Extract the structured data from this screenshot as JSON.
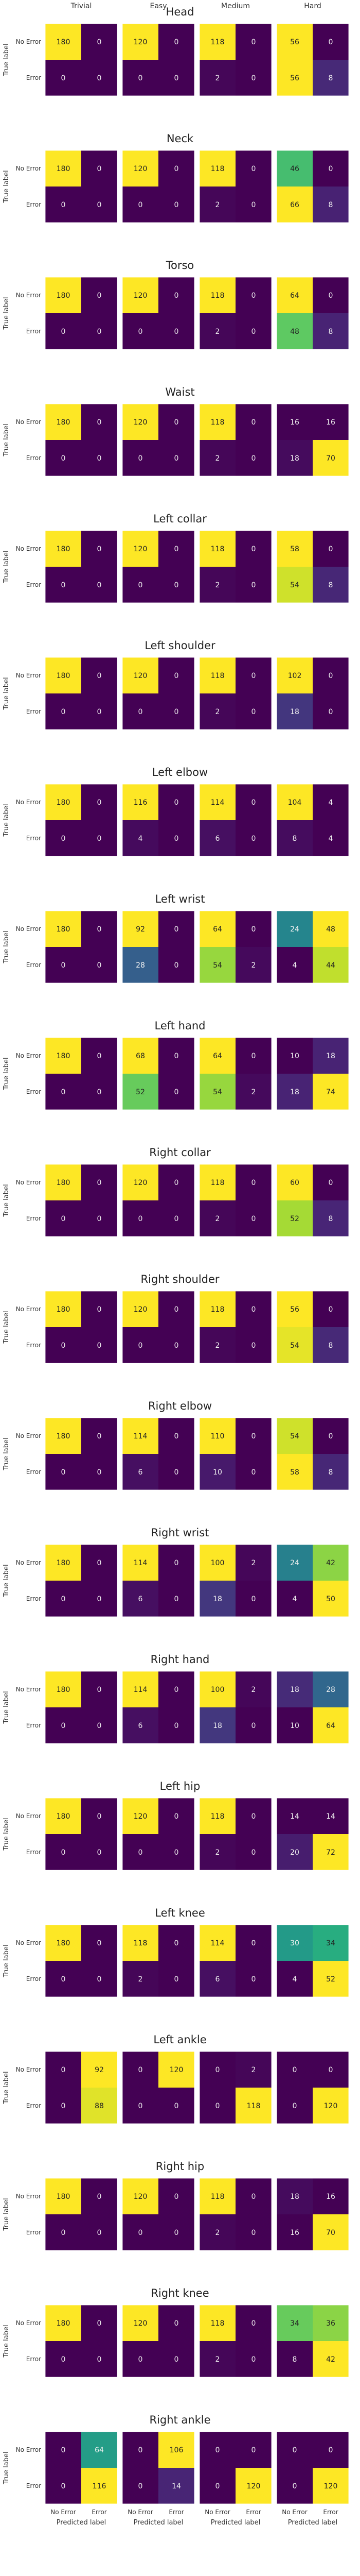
{
  "chart_data": {
    "type": "heatmap",
    "difficulties": [
      "Trivial",
      "Easy",
      "Medium",
      "Hard"
    ],
    "axis": {
      "ylabel": "True label",
      "xlabel": "Predicted label",
      "ticks": [
        "No Error",
        "Error"
      ]
    },
    "colormap": {
      "low": "#440154",
      "high": "#fde725",
      "mid": "#21918c"
    },
    "rows": [
      {
        "title": "Head",
        "matrices": [
          [
            [
              180,
              0
            ],
            [
              0,
              0
            ]
          ],
          [
            [
              120,
              0
            ],
            [
              0,
              0
            ]
          ],
          [
            [
              118,
              0
            ],
            [
              2,
              0
            ]
          ],
          [
            [
              56,
              0
            ],
            [
              56,
              8
            ]
          ]
        ]
      },
      {
        "title": "Neck",
        "matrices": [
          [
            [
              180,
              0
            ],
            [
              0,
              0
            ]
          ],
          [
            [
              120,
              0
            ],
            [
              0,
              0
            ]
          ],
          [
            [
              118,
              0
            ],
            [
              2,
              0
            ]
          ],
          [
            [
              46,
              0
            ],
            [
              66,
              8
            ]
          ]
        ]
      },
      {
        "title": "Torso",
        "matrices": [
          [
            [
              180,
              0
            ],
            [
              0,
              0
            ]
          ],
          [
            [
              120,
              0
            ],
            [
              0,
              0
            ]
          ],
          [
            [
              118,
              0
            ],
            [
              2,
              0
            ]
          ],
          [
            [
              64,
              0
            ],
            [
              48,
              8
            ]
          ]
        ]
      },
      {
        "title": "Waist",
        "matrices": [
          [
            [
              180,
              0
            ],
            [
              0,
              0
            ]
          ],
          [
            [
              120,
              0
            ],
            [
              0,
              0
            ]
          ],
          [
            [
              118,
              0
            ],
            [
              2,
              0
            ]
          ],
          [
            [
              16,
              16
            ],
            [
              18,
              70
            ]
          ]
        ]
      },
      {
        "title": "Left collar",
        "matrices": [
          [
            [
              180,
              0
            ],
            [
              0,
              0
            ]
          ],
          [
            [
              120,
              0
            ],
            [
              0,
              0
            ]
          ],
          [
            [
              118,
              0
            ],
            [
              2,
              0
            ]
          ],
          [
            [
              58,
              0
            ],
            [
              54,
              8
            ]
          ]
        ]
      },
      {
        "title": "Left shoulder",
        "matrices": [
          [
            [
              180,
              0
            ],
            [
              0,
              0
            ]
          ],
          [
            [
              120,
              0
            ],
            [
              0,
              0
            ]
          ],
          [
            [
              118,
              0
            ],
            [
              2,
              0
            ]
          ],
          [
            [
              102,
              0
            ],
            [
              18,
              0
            ]
          ]
        ]
      },
      {
        "title": "Left elbow",
        "matrices": [
          [
            [
              180,
              0
            ],
            [
              0,
              0
            ]
          ],
          [
            [
              116,
              0
            ],
            [
              4,
              0
            ]
          ],
          [
            [
              114,
              0
            ],
            [
              6,
              0
            ]
          ],
          [
            [
              104,
              4
            ],
            [
              8,
              4
            ]
          ]
        ]
      },
      {
        "title": "Left wrist",
        "matrices": [
          [
            [
              180,
              0
            ],
            [
              0,
              0
            ]
          ],
          [
            [
              92,
              0
            ],
            [
              28,
              0
            ]
          ],
          [
            [
              64,
              0
            ],
            [
              54,
              2
            ]
          ],
          [
            [
              24,
              48
            ],
            [
              4,
              44
            ]
          ]
        ]
      },
      {
        "title": "Left hand",
        "matrices": [
          [
            [
              180,
              0
            ],
            [
              0,
              0
            ]
          ],
          [
            [
              68,
              0
            ],
            [
              52,
              0
            ]
          ],
          [
            [
              64,
              0
            ],
            [
              54,
              2
            ]
          ],
          [
            [
              10,
              18
            ],
            [
              18,
              74
            ]
          ]
        ]
      },
      {
        "title": "Right collar",
        "matrices": [
          [
            [
              180,
              0
            ],
            [
              0,
              0
            ]
          ],
          [
            [
              120,
              0
            ],
            [
              0,
              0
            ]
          ],
          [
            [
              118,
              0
            ],
            [
              2,
              0
            ]
          ],
          [
            [
              60,
              0
            ],
            [
              52,
              8
            ]
          ]
        ]
      },
      {
        "title": "Right shoulder",
        "matrices": [
          [
            [
              180,
              0
            ],
            [
              0,
              0
            ]
          ],
          [
            [
              120,
              0
            ],
            [
              0,
              0
            ]
          ],
          [
            [
              118,
              0
            ],
            [
              2,
              0
            ]
          ],
          [
            [
              56,
              0
            ],
            [
              54,
              8
            ]
          ]
        ]
      },
      {
        "title": "Right elbow",
        "matrices": [
          [
            [
              180,
              0
            ],
            [
              0,
              0
            ]
          ],
          [
            [
              114,
              0
            ],
            [
              6,
              0
            ]
          ],
          [
            [
              110,
              0
            ],
            [
              10,
              0
            ]
          ],
          [
            [
              54,
              0
            ],
            [
              58,
              8
            ]
          ]
        ]
      },
      {
        "title": "Right wrist",
        "matrices": [
          [
            [
              180,
              0
            ],
            [
              0,
              0
            ]
          ],
          [
            [
              114,
              0
            ],
            [
              6,
              0
            ]
          ],
          [
            [
              100,
              2
            ],
            [
              18,
              0
            ]
          ],
          [
            [
              24,
              42
            ],
            [
              4,
              50
            ]
          ]
        ]
      },
      {
        "title": "Right hand",
        "matrices": [
          [
            [
              180,
              0
            ],
            [
              0,
              0
            ]
          ],
          [
            [
              114,
              0
            ],
            [
              6,
              0
            ]
          ],
          [
            [
              100,
              2
            ],
            [
              18,
              0
            ]
          ],
          [
            [
              18,
              28
            ],
            [
              10,
              64
            ]
          ]
        ]
      },
      {
        "title": "Left hip",
        "matrices": [
          [
            [
              180,
              0
            ],
            [
              0,
              0
            ]
          ],
          [
            [
              120,
              0
            ],
            [
              0,
              0
            ]
          ],
          [
            [
              118,
              0
            ],
            [
              2,
              0
            ]
          ],
          [
            [
              14,
              14
            ],
            [
              20,
              72
            ]
          ]
        ]
      },
      {
        "title": "Left knee",
        "matrices": [
          [
            [
              180,
              0
            ],
            [
              0,
              0
            ]
          ],
          [
            [
              118,
              0
            ],
            [
              2,
              0
            ]
          ],
          [
            [
              114,
              0
            ],
            [
              6,
              0
            ]
          ],
          [
            [
              30,
              34
            ],
            [
              4,
              52
            ]
          ]
        ]
      },
      {
        "title": "Left ankle",
        "matrices": [
          [
            [
              0,
              92
            ],
            [
              0,
              88
            ]
          ],
          [
            [
              0,
              120
            ],
            [
              0,
              0
            ]
          ],
          [
            [
              0,
              2
            ],
            [
              0,
              118
            ]
          ],
          [
            [
              0,
              0
            ],
            [
              0,
              120
            ]
          ]
        ]
      },
      {
        "title": "Right hip",
        "matrices": [
          [
            [
              180,
              0
            ],
            [
              0,
              0
            ]
          ],
          [
            [
              120,
              0
            ],
            [
              0,
              0
            ]
          ],
          [
            [
              118,
              0
            ],
            [
              2,
              0
            ]
          ],
          [
            [
              18,
              16
            ],
            [
              16,
              70
            ]
          ]
        ]
      },
      {
        "title": "Right knee",
        "matrices": [
          [
            [
              180,
              0
            ],
            [
              0,
              0
            ]
          ],
          [
            [
              120,
              0
            ],
            [
              0,
              0
            ]
          ],
          [
            [
              118,
              0
            ],
            [
              2,
              0
            ]
          ],
          [
            [
              34,
              36
            ],
            [
              8,
              42
            ]
          ]
        ]
      },
      {
        "title": "Right ankle",
        "matrices": [
          [
            [
              0,
              64
            ],
            [
              0,
              116
            ]
          ],
          [
            [
              0,
              106
            ],
            [
              0,
              14
            ]
          ],
          [
            [
              0,
              0
            ],
            [
              0,
              120
            ]
          ],
          [
            [
              0,
              0
            ],
            [
              0,
              120
            ]
          ]
        ]
      }
    ]
  }
}
